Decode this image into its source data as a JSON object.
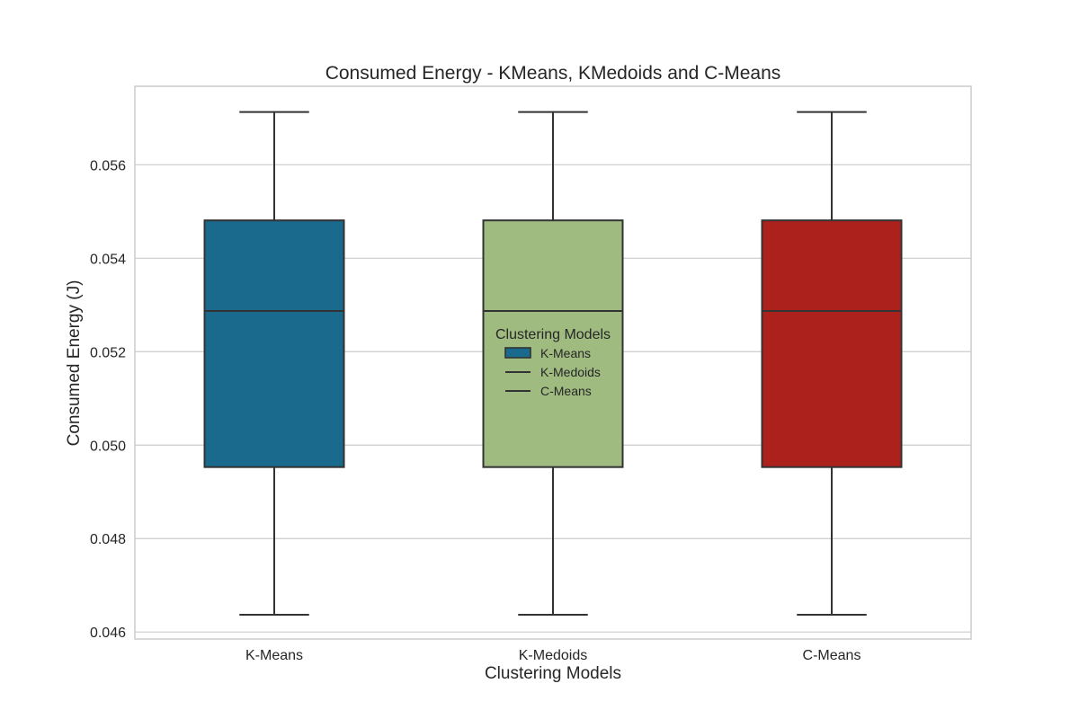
{
  "chart_data": {
    "type": "box",
    "title": "Consumed Energy - KMeans, KMedoids and C-Means",
    "xlabel": "Clustering Models",
    "ylabel": "Consumed Energy (J)",
    "categories": [
      "K-Means",
      "K-Medoids",
      "C-Means"
    ],
    "boxes": [
      {
        "category": "K-Means",
        "whisker_low": 0.04637,
        "q1": 0.04953,
        "median": 0.05287,
        "q3": 0.05481,
        "whisker_high": 0.05713,
        "color": "#1a6a8e"
      },
      {
        "category": "K-Medoids",
        "whisker_low": 0.04637,
        "q1": 0.04953,
        "median": 0.05287,
        "q3": 0.05481,
        "whisker_high": 0.05713,
        "color": "#9fbb80"
      },
      {
        "category": "C-Means",
        "whisker_low": 0.04637,
        "q1": 0.04953,
        "median": 0.05287,
        "q3": 0.05481,
        "whisker_high": 0.05713,
        "color": "#ad211d"
      }
    ],
    "ylim": [
      0.04585,
      0.05768
    ],
    "yticks": [
      0.046,
      0.048,
      0.05,
      0.052,
      0.054,
      0.056
    ],
    "ytick_labels": [
      "0.046",
      "0.048",
      "0.050",
      "0.052",
      "0.054",
      "0.056"
    ],
    "grid": true,
    "legend": {
      "title": "Clustering Models",
      "placement": "center",
      "entries": [
        {
          "label": "K-Means",
          "marker": "patch",
          "color": "#1a6a8e"
        },
        {
          "label": "K-Medoids",
          "marker": "line",
          "color": "#333333"
        },
        {
          "label": "C-Means",
          "marker": "line",
          "color": "#333333"
        }
      ]
    },
    "colors": {
      "edge": "#333333",
      "grid": "#cccccc",
      "spine": "#cccccc"
    }
  }
}
